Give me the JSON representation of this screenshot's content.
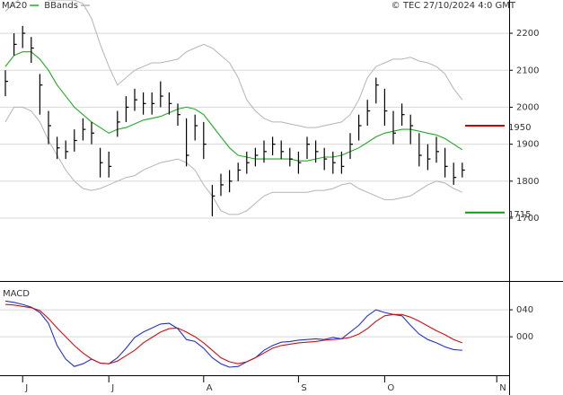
{
  "chart_data": [
    {
      "type": "ohlc",
      "source": "© TEC 27/10/2024 4:0 GMT",
      "color": "#000000",
      "high": [
        2100,
        2200,
        2220,
        2190,
        2090,
        1990,
        1920,
        1910,
        1940,
        1970,
        1960,
        1890,
        1880,
        1990,
        2030,
        2050,
        2040,
        2040,
        2070,
        2040,
        2010,
        1970,
        1980,
        1960,
        1790,
        1820,
        1830,
        1850,
        1880,
        1890,
        1910,
        1920,
        1910,
        1890,
        1880,
        1920,
        1910,
        1890,
        1880,
        1880,
        1930,
        1980,
        2020,
        2080,
        2050,
        1990,
        2010,
        1980,
        1930,
        1900,
        1920,
        1890,
        1850,
        1850,
        null,
        null,
        null,
        null
      ],
      "low": [
        2030,
        2140,
        2160,
        2120,
        1980,
        1900,
        1860,
        1860,
        1880,
        1910,
        1900,
        1810,
        1810,
        1920,
        1960,
        1990,
        1980,
        1980,
        2000,
        1980,
        1950,
        1840,
        1910,
        1860,
        1705,
        1760,
        1770,
        1800,
        1820,
        1840,
        1850,
        1870,
        1860,
        1840,
        1820,
        1860,
        1850,
        1830,
        1820,
        1820,
        1860,
        1910,
        1950,
        2010,
        1950,
        1900,
        1950,
        1900,
        1840,
        1830,
        1850,
        1810,
        1790,
        1810,
        null,
        null,
        null,
        null
      ],
      "close": [
        2070,
        2170,
        2200,
        2160,
        2060,
        1950,
        1890,
        1880,
        1910,
        1940,
        1930,
        1850,
        1840,
        1960,
        2000,
        2020,
        2010,
        2010,
        2030,
        2010,
        1980,
        1870,
        1950,
        1900,
        1760,
        1790,
        1800,
        1830,
        1850,
        1870,
        1880,
        1900,
        1880,
        1860,
        1850,
        1900,
        1880,
        1860,
        1850,
        1840,
        1900,
        1950,
        1990,
        2060,
        1990,
        1930,
        1980,
        1950,
        1870,
        1860,
        1880,
        1840,
        1810,
        1830,
        null,
        null,
        null,
        null
      ],
      "series": [
        {
          "name": "MA20",
          "color": "#22aa22",
          "values": [
            2110,
            2140,
            2150,
            2150,
            2130,
            2100,
            2060,
            2030,
            2000,
            1980,
            1960,
            1945,
            1930,
            1940,
            1945,
            1955,
            1965,
            1970,
            1975,
            1985,
            1995,
            2000,
            1995,
            1980,
            1950,
            1920,
            1890,
            1870,
            1865,
            1860,
            1860,
            1860,
            1860,
            1860,
            1855,
            1855,
            1860,
            1865,
            1865,
            1870,
            1880,
            1890,
            1905,
            1920,
            1930,
            1935,
            1940,
            1940,
            1935,
            1930,
            1925,
            1915,
            1900,
            1885,
            null,
            null,
            null,
            null
          ]
        },
        {
          "name": "BBands",
          "color": "#b4b4b4",
          "upper": [
            2260,
            2280,
            2300,
            2310,
            2300,
            2290,
            2290,
            2290,
            2290,
            2280,
            2240,
            2170,
            2110,
            2060,
            2080,
            2100,
            2110,
            2120,
            2120,
            2125,
            2130,
            2150,
            2160,
            2170,
            2160,
            2140,
            2120,
            2080,
            2020,
            1990,
            1970,
            1960,
            1960,
            1955,
            1950,
            1945,
            1945,
            1950,
            1955,
            1960,
            1980,
            2020,
            2080,
            2110,
            2120,
            2130,
            2130,
            2135,
            2125,
            2120,
            2110,
            2090,
            2050,
            2020,
            null,
            null,
            null,
            null
          ],
          "lower": [
            1960,
            2000,
            2000,
            1990,
            1960,
            1910,
            1870,
            1830,
            1800,
            1780,
            1775,
            1780,
            1790,
            1800,
            1810,
            1815,
            1830,
            1840,
            1850,
            1855,
            1860,
            1850,
            1830,
            1790,
            1760,
            1720,
            1710,
            1710,
            1720,
            1740,
            1760,
            1770,
            1770,
            1770,
            1770,
            1770,
            1775,
            1775,
            1780,
            1790,
            1795,
            1780,
            1770,
            1760,
            1750,
            1750,
            1755,
            1760,
            1775,
            1790,
            1800,
            1795,
            1780,
            1770,
            null,
            null,
            null,
            null
          ]
        }
      ],
      "levels": [
        {
          "value": 1950,
          "color": "#cc0000"
        },
        {
          "value": 1715,
          "color": "#119911"
        }
      ],
      "ylim": [
        1530,
        2290
      ],
      "yticks": [
        1700,
        1800,
        1900,
        2000,
        2100,
        2200
      ],
      "grid": true
    },
    {
      "type": "line",
      "title": "MACD",
      "categories": [
        null,
        null,
        "J",
        null,
        null,
        null,
        null,
        null,
        null,
        null,
        null,
        null,
        "J",
        null,
        null,
        null,
        null,
        null,
        null,
        null,
        null,
        null,
        null,
        "A",
        null,
        null,
        null,
        null,
        null,
        null,
        null,
        null,
        null,
        null,
        "S",
        null,
        null,
        null,
        null,
        null,
        null,
        null,
        null,
        null,
        "O",
        null,
        null,
        null,
        null,
        null,
        null,
        null,
        null,
        null,
        null,
        null,
        null,
        "N"
      ],
      "series": [
        {
          "color": "#2233cc",
          "values": [
            53,
            51,
            48,
            44,
            36,
            20,
            -13,
            -33,
            -44,
            -40,
            -33,
            -39,
            -40,
            -31,
            -17,
            -1,
            7,
            13,
            19,
            20,
            12,
            -4,
            -7,
            -17,
            -31,
            -40,
            -45,
            -44,
            -37,
            -31,
            -20,
            -13,
            -8,
            -7,
            -5,
            -4,
            -3,
            -4,
            -1,
            -3,
            7,
            17,
            31,
            40,
            36,
            33,
            31,
            17,
            4,
            -4,
            -9,
            -15,
            -19,
            -20,
            null,
            null,
            null,
            null
          ]
        },
        {
          "color": "#cc1111",
          "values": [
            48,
            47,
            45,
            43,
            39,
            27,
            13,
            0,
            -13,
            -24,
            -33,
            -39,
            -40,
            -36,
            -28,
            -20,
            -9,
            -1,
            7,
            12,
            13,
            7,
            0,
            -9,
            -20,
            -31,
            -37,
            -40,
            -37,
            -31,
            -24,
            -17,
            -13,
            -11,
            -9,
            -8,
            -7,
            -5,
            -4,
            -3,
            -1,
            4,
            12,
            23,
            31,
            33,
            33,
            29,
            23,
            16,
            9,
            3,
            -4,
            -9,
            null,
            null,
            null,
            null
          ]
        }
      ],
      "ylim": [
        -57,
        76
      ],
      "yticks": [
        {
          "value": 40,
          "label": "040"
        },
        {
          "value": 0,
          "label": "000"
        }
      ],
      "grid": true
    }
  ]
}
